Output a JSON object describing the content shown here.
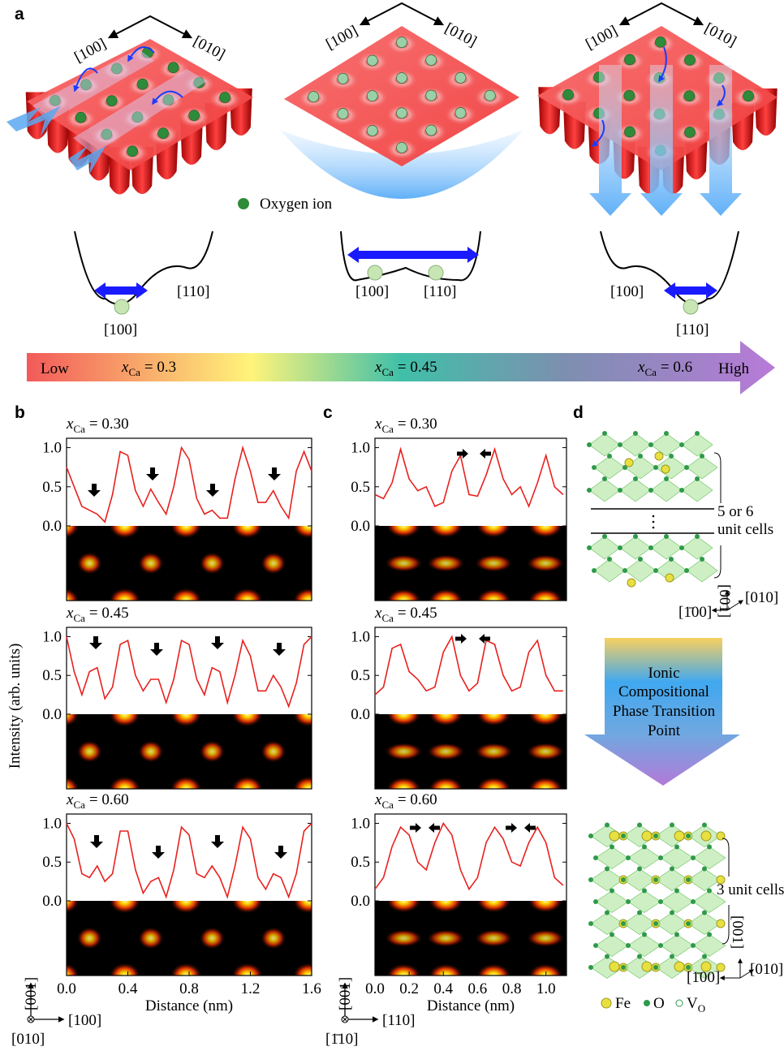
{
  "panel_labels": [
    "a",
    "b",
    "c",
    "d"
  ],
  "panel_a": {
    "directions": [
      [
        "[100]",
        "[010]"
      ],
      [
        "[100]",
        "[010]"
      ],
      [
        "[100]",
        "[010]"
      ]
    ],
    "legend": "Oxygen ion",
    "energy_levels": [
      [
        "[110]",
        "[100]"
      ],
      [
        "[100]",
        "[110]"
      ],
      [
        "[100]",
        "[110]"
      ]
    ]
  },
  "composition_bar": {
    "low": "Low",
    "high": "High",
    "points": [
      {
        "symbol": "x",
        "subscript": "Ca",
        "text": "= 0.3"
      },
      {
        "symbol": "x",
        "subscript": "Ca",
        "text": "= 0.45"
      },
      {
        "symbol": "x",
        "subscript": "Ca",
        "text": "= 0.6"
      }
    ]
  },
  "y_axis_label": "Intensity (arb. units)",
  "orientation_b": {
    "vertical": "[001]",
    "horizontal": "[100]",
    "normal": "[010]"
  },
  "orientation_c": {
    "vertical": "[001]",
    "horizontal": "[110]",
    "normal": "[1̄10]"
  },
  "chart_data": [
    {
      "type": "line",
      "title": {
        "symbol": "x",
        "subscript": "Ca",
        "text": "= 0.30",
        "color": "#f07f2a"
      },
      "x": [
        0,
        0.05,
        0.1,
        0.15,
        0.2,
        0.25,
        0.3,
        0.35,
        0.4,
        0.45,
        0.5,
        0.55,
        0.6,
        0.65,
        0.7,
        0.75,
        0.8,
        0.85,
        0.9,
        0.95,
        1.0,
        1.05,
        1.1,
        1.15,
        1.2,
        1.25,
        1.3,
        1.35,
        1.4,
        1.45,
        1.5,
        1.55,
        1.6
      ],
      "values": [
        0.75,
        0.5,
        0.25,
        0.2,
        0.15,
        0.05,
        0.4,
        0.95,
        0.9,
        0.45,
        0.25,
        0.47,
        0.3,
        0.15,
        0.5,
        1.0,
        0.85,
        0.35,
        0.15,
        0.2,
        0.1,
        0.1,
        0.6,
        1.0,
        0.7,
        0.3,
        0.3,
        0.45,
        0.25,
        0.1,
        0.7,
        0.95,
        0.7
      ],
      "color": "#e8211e",
      "xlim": [
        0,
        1.6
      ],
      "ylim": [
        0,
        1.12
      ],
      "yticks": [
        {
          "value": 0,
          "label": "0.0"
        },
        0.5,
        {
          "value": 1,
          "label": "1.0"
        }
      ]
    },
    {
      "type": "line",
      "title": {
        "symbol": "x",
        "subscript": "Ca",
        "text": "= 0.45",
        "color": "#29a3e6"
      },
      "x": [
        0,
        0.05,
        0.1,
        0.15,
        0.2,
        0.25,
        0.3,
        0.35,
        0.4,
        0.45,
        0.5,
        0.55,
        0.6,
        0.65,
        0.7,
        0.75,
        0.8,
        0.85,
        0.9,
        0.95,
        1.0,
        1.05,
        1.1,
        1.15,
        1.2,
        1.25,
        1.3,
        1.35,
        1.4,
        1.45,
        1.5,
        1.55,
        1.6
      ],
      "values": [
        1.0,
        0.55,
        0.25,
        0.55,
        0.6,
        0.2,
        0.35,
        0.9,
        0.95,
        0.5,
        0.3,
        0.45,
        0.45,
        0.15,
        0.45,
        0.95,
        0.9,
        0.45,
        0.25,
        0.6,
        0.55,
        0.15,
        0.5,
        0.95,
        0.75,
        0.3,
        0.3,
        0.5,
        0.35,
        0.1,
        0.4,
        0.9,
        1.0
      ],
      "color": "#e8211e",
      "xlim": [
        0,
        1.6
      ],
      "ylim": [
        0,
        1.12
      ],
      "yticks": [
        {
          "value": 0,
          "label": "0.0"
        },
        0.5,
        {
          "value": 1,
          "label": "1.0"
        }
      ]
    },
    {
      "type": "line",
      "title": {
        "symbol": "x",
        "subscript": "Ca",
        "text": "= 0.60",
        "color": "#9b30d9"
      },
      "x": [
        0,
        0.05,
        0.1,
        0.15,
        0.2,
        0.25,
        0.3,
        0.35,
        0.4,
        0.45,
        0.5,
        0.55,
        0.6,
        0.65,
        0.7,
        0.75,
        0.8,
        0.85,
        0.9,
        0.95,
        1.0,
        1.05,
        1.1,
        1.15,
        1.2,
        1.25,
        1.3,
        1.35,
        1.4,
        1.45,
        1.5,
        1.55,
        1.6
      ],
      "values": [
        1.0,
        0.8,
        0.35,
        0.3,
        0.45,
        0.25,
        0.35,
        0.9,
        0.9,
        0.4,
        0.1,
        0.25,
        0.3,
        0.05,
        0.4,
        0.95,
        0.85,
        0.35,
        0.3,
        0.45,
        0.3,
        0.05,
        0.45,
        0.95,
        0.8,
        0.3,
        0.15,
        0.35,
        0.3,
        0.05,
        0.35,
        0.9,
        1.0
      ],
      "color": "#e8211e",
      "xlim": [
        0,
        1.6
      ],
      "ylim": [
        0,
        1.12
      ],
      "yticks": [
        {
          "value": 0,
          "label": "0.0"
        },
        0.5,
        {
          "value": 1,
          "label": "1.0"
        }
      ],
      "xticks": [
        {
          "value": 0,
          "label": "0.0"
        },
        0.4,
        0.8,
        1.2,
        1.6
      ],
      "xlabel": "Distance (nm)"
    },
    {
      "type": "line",
      "title": {
        "symbol": "x",
        "subscript": "Ca",
        "text": "= 0.30",
        "color": "#f07f2a"
      },
      "x": [
        0,
        0.05,
        0.1,
        0.15,
        0.2,
        0.25,
        0.3,
        0.35,
        0.4,
        0.45,
        0.5,
        0.55,
        0.6,
        0.65,
        0.7,
        0.75,
        0.8,
        0.85,
        0.9,
        0.95,
        1.0,
        1.05,
        1.1
      ],
      "values": [
        0.4,
        0.35,
        0.55,
        0.98,
        0.6,
        0.45,
        0.5,
        0.25,
        0.3,
        0.7,
        0.9,
        0.4,
        0.38,
        0.65,
        0.98,
        0.6,
        0.4,
        0.5,
        0.25,
        0.55,
        0.9,
        0.5,
        0.4
      ],
      "color": "#e8211e",
      "xlim": [
        0,
        1.12
      ],
      "ylim": [
        0,
        1.12
      ],
      "yticks": [
        {
          "value": 0,
          "label": "0.0"
        },
        0.5,
        {
          "value": 1,
          "label": "1.0"
        }
      ]
    },
    {
      "type": "line",
      "title": {
        "symbol": "x",
        "subscript": "Ca",
        "text": "= 0.45",
        "color": "#29a3e6"
      },
      "x": [
        0,
        0.05,
        0.1,
        0.15,
        0.2,
        0.25,
        0.3,
        0.35,
        0.4,
        0.45,
        0.5,
        0.55,
        0.6,
        0.65,
        0.7,
        0.75,
        0.8,
        0.85,
        0.9,
        0.95,
        1.0,
        1.05,
        1.1
      ],
      "values": [
        0.25,
        0.35,
        0.85,
        0.9,
        0.55,
        0.45,
        0.3,
        0.35,
        0.8,
        1.0,
        0.5,
        0.3,
        0.4,
        0.95,
        0.9,
        0.5,
        0.3,
        0.35,
        0.8,
        0.95,
        0.5,
        0.3,
        0.3
      ],
      "color": "#e8211e",
      "xlim": [
        0,
        1.12
      ],
      "ylim": [
        0,
        1.12
      ],
      "yticks": [
        {
          "value": 0,
          "label": "0.0"
        },
        0.5,
        {
          "value": 1,
          "label": "1.0"
        }
      ]
    },
    {
      "type": "line",
      "title": {
        "symbol": "x",
        "subscript": "Ca",
        "text": "= 0.60",
        "color": "#9b30d9"
      },
      "x": [
        0,
        0.05,
        0.1,
        0.15,
        0.2,
        0.25,
        0.3,
        0.35,
        0.4,
        0.45,
        0.5,
        0.55,
        0.6,
        0.65,
        0.7,
        0.75,
        0.8,
        0.85,
        0.9,
        0.95,
        1.0,
        1.05,
        1.1
      ],
      "values": [
        0.15,
        0.3,
        0.7,
        0.95,
        0.85,
        0.5,
        0.4,
        0.75,
        1.0,
        0.85,
        0.4,
        0.15,
        0.3,
        0.75,
        0.95,
        0.8,
        0.5,
        0.45,
        0.75,
        0.95,
        0.75,
        0.3,
        0.2
      ],
      "color": "#e8211e",
      "xlim": [
        0,
        1.12
      ],
      "ylim": [
        0,
        1.12
      ],
      "yticks": [
        {
          "value": 0,
          "label": "0.0"
        },
        0.5,
        {
          "value": 1,
          "label": "1.0"
        }
      ],
      "xticks": [
        {
          "value": 0,
          "label": "0.0"
        },
        0.2,
        0.4,
        0.6,
        0.8,
        {
          "value": 1,
          "label": "1.0"
        }
      ],
      "xlabel": "Distance (nm)"
    }
  ],
  "panel_d": {
    "top_cells": [
      "5 or 6",
      "unit cells"
    ],
    "top_axes": {
      "vertical": "[001]",
      "right": "[010]",
      "left": "[1̄00]"
    },
    "transition": [
      "Ionic",
      "Compositional",
      "Phase Transition",
      "Point"
    ],
    "bottom_cells": "3 unit cells",
    "bottom_axes": {
      "vertical": "[001]",
      "left": "[1̄00]",
      "right": "[010]"
    },
    "legend": {
      "fe": "Fe",
      "o": "O",
      "vo": "V",
      "vo_sub": "O"
    }
  }
}
